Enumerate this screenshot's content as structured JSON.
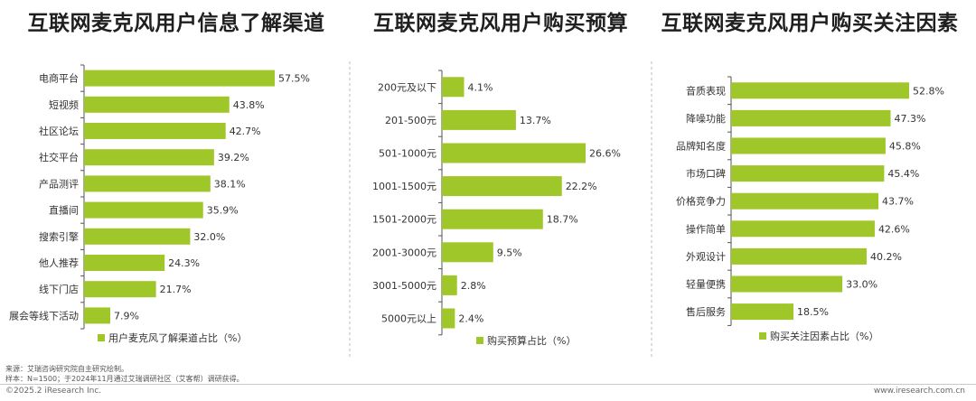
{
  "colors": {
    "bar": "#9fc729",
    "axis": "#555555",
    "divider": "#bbbbbb"
  },
  "chart_data": [
    {
      "type": "bar",
      "orientation": "horizontal",
      "title": "互联网麦克风用户信息了解渠道",
      "categories": [
        "电商平台",
        "短视频",
        "社区论坛",
        "社交平台",
        "产品测评",
        "直播间",
        "搜索引擎",
        "他人推荐",
        "线下门店",
        "展会等线下活动"
      ],
      "values": [
        57.5,
        43.8,
        42.7,
        39.2,
        38.1,
        35.9,
        32.0,
        24.3,
        21.7,
        7.9
      ],
      "labels": [
        "57.5%",
        "43.8%",
        "42.7%",
        "39.2%",
        "38.1%",
        "35.9%",
        "32.0%",
        "24.3%",
        "21.7%",
        "7.9%"
      ],
      "legend": "用户麦克风了解渠道占比（%）"
    },
    {
      "type": "bar",
      "orientation": "horizontal",
      "title": "互联网麦克风用户购买预算",
      "categories": [
        "200元及以下",
        "201-500元",
        "501-1000元",
        "1001-1500元",
        "1501-2000元",
        "2001-3000元",
        "3001-5000元",
        "5000元以上"
      ],
      "values": [
        4.1,
        13.7,
        26.6,
        22.2,
        18.7,
        9.5,
        2.8,
        2.4
      ],
      "labels": [
        "4.1%",
        "13.7%",
        "26.6%",
        "22.2%",
        "18.7%",
        "9.5%",
        "2.8%",
        "2.4%"
      ],
      "legend": "购买预算占比（%）"
    },
    {
      "type": "bar",
      "orientation": "horizontal",
      "title": "互联网麦克风用户购买关注因素",
      "categories": [
        "音质表现",
        "降噪功能",
        "品牌知名度",
        "市场口碑",
        "价格竞争力",
        "操作简单",
        "外观设计",
        "轻量便携",
        "售后服务"
      ],
      "values": [
        52.8,
        47.3,
        45.8,
        45.4,
        43.7,
        42.6,
        40.2,
        33.0,
        18.5
      ],
      "labels": [
        "52.8%",
        "47.3%",
        "45.8%",
        "45.4%",
        "43.7%",
        "42.6%",
        "40.2%",
        "33.0%",
        "18.5%"
      ],
      "legend": "购买关注因素占比（%）"
    }
  ],
  "notes": {
    "source": "来源：艾瑞咨询研究院自主研究绘制。",
    "sample": "样本：N=1500；于2024年11月通过艾瑞调研社区（艾客帮）调研获得。"
  },
  "footer": {
    "copyright": "©2025.2 iResearch Inc.",
    "website": "www.iresearch.com.cn"
  }
}
